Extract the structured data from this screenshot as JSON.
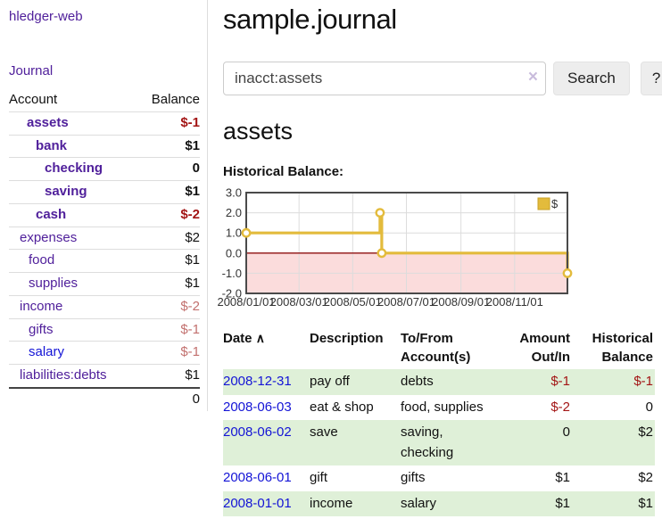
{
  "sidebar": {
    "app_title": "hledger-web",
    "journal_link": "Journal",
    "accounts_header": {
      "account": "Account",
      "balance": "Balance"
    },
    "accounts": [
      {
        "label": "assets",
        "indent": 20,
        "bold": true,
        "balance": "$-1",
        "balance_style": "negative",
        "link_style": "purple"
      },
      {
        "label": "bank",
        "indent": 30,
        "bold": true,
        "balance": "$1",
        "balance_style": "normal",
        "link_style": "purple"
      },
      {
        "label": "checking",
        "indent": 40,
        "bold": true,
        "balance": "0",
        "balance_style": "normal",
        "link_style": "purple"
      },
      {
        "label": "saving",
        "indent": 40,
        "bold": true,
        "balance": "$1",
        "balance_style": "normal",
        "link_style": "purple"
      },
      {
        "label": "cash",
        "indent": 30,
        "bold": true,
        "balance": "$-2",
        "balance_style": "negative",
        "link_style": "purple"
      },
      {
        "label": "expenses",
        "indent": 12,
        "bold": false,
        "balance": "$2",
        "balance_style": "normal",
        "link_style": "purple"
      },
      {
        "label": "food",
        "indent": 22,
        "bold": false,
        "balance": "$1",
        "balance_style": "normal",
        "link_style": "purple"
      },
      {
        "label": "supplies",
        "indent": 22,
        "bold": false,
        "balance": "$1",
        "balance_style": "normal",
        "link_style": "purple"
      },
      {
        "label": "income",
        "indent": 12,
        "bold": false,
        "balance": "$-2",
        "balance_style": "dim-negative",
        "link_style": "purple"
      },
      {
        "label": "gifts",
        "indent": 22,
        "bold": false,
        "balance": "$-1",
        "balance_style": "dim-negative",
        "link_style": "purple"
      },
      {
        "label": "salary",
        "indent": 22,
        "bold": false,
        "balance": "$-1",
        "balance_style": "dim-negative",
        "link_style": "blue"
      },
      {
        "label": "liabilities:debts",
        "indent": 12,
        "bold": false,
        "balance": "$1",
        "balance_style": "normal",
        "link_style": "purple"
      }
    ],
    "total": "0"
  },
  "main": {
    "title": "sample.journal",
    "search": {
      "value": "inacct:assets",
      "clear_icon": "×",
      "search_label": "Search",
      "help_label": "?"
    },
    "account_heading": "assets",
    "chart_heading": "Historical Balance:"
  },
  "transactions": {
    "columns": [
      "Date",
      "Description",
      "To/From Account(s)",
      "Amount Out/In",
      "Historical Balance"
    ],
    "sort_icon": "∧",
    "rows": [
      {
        "date": "2008-12-31",
        "description": "pay off",
        "accounts": "debts",
        "amount": "$-1",
        "amount_negative": true,
        "balance": "$-1",
        "balance_negative": true
      },
      {
        "date": "2008-06-03",
        "description": "eat & shop",
        "accounts": "food, supplies",
        "amount": "$-2",
        "amount_negative": true,
        "balance": "0",
        "balance_negative": false
      },
      {
        "date": "2008-06-02",
        "description": "save",
        "accounts": "saving, checking",
        "amount": "0",
        "amount_negative": false,
        "balance": "$2",
        "balance_negative": false
      },
      {
        "date": "2008-06-01",
        "description": "gift",
        "accounts": "gifts",
        "amount": "$1",
        "amount_negative": false,
        "balance": "$2",
        "balance_negative": false
      },
      {
        "date": "2008-01-01",
        "description": "income",
        "accounts": "salary",
        "amount": "$1",
        "amount_negative": false,
        "balance": "$1",
        "balance_negative": false
      }
    ]
  },
  "chart_data": {
    "type": "line",
    "step": true,
    "title": "Historical Balance:",
    "xlim": [
      "2008-01-01",
      "2008-12-31"
    ],
    "ylim": [
      -2,
      3
    ],
    "ytick_labels": [
      "3.0",
      "2.0",
      "1.0",
      "0.0",
      "-1.0",
      "-2.0"
    ],
    "yticks": [
      3,
      2,
      1,
      0,
      -1,
      -2
    ],
    "xticks": [
      {
        "date": "2008-01-01",
        "label": "2008/01/01"
      },
      {
        "date": "2008-03-01",
        "label": "2008/03/01"
      },
      {
        "date": "2008-05-01",
        "label": "2008/05/01"
      },
      {
        "date": "2008-07-01",
        "label": "2008/07/01"
      },
      {
        "date": "2008-09-01",
        "label": "2008/09/01"
      },
      {
        "date": "2008-11-01",
        "label": "2008/11/01"
      }
    ],
    "series": [
      {
        "name": "$",
        "points": [
          {
            "date": "2008-01-01",
            "value": 1
          },
          {
            "date": "2008-06-01",
            "value": 2
          },
          {
            "date": "2008-06-03",
            "value": 0
          },
          {
            "date": "2008-12-31",
            "value": -1
          }
        ]
      }
    ],
    "legend": {
      "label": "$",
      "position": "top-right"
    }
  },
  "colors": {
    "link_purple": "#50209b",
    "link_blue": "#1414d6",
    "negative_red": "#a31515",
    "dim_negative": "#c2706e",
    "row_green": "#dff0d8",
    "series_gold": "#e3bb3c",
    "legend_square_border": "#c9a227",
    "negative_region_pink": "#fbdcdc",
    "zero_line": "#8f1010",
    "grid": "#dcdcdc",
    "chart_border": "#4a4a4a"
  }
}
